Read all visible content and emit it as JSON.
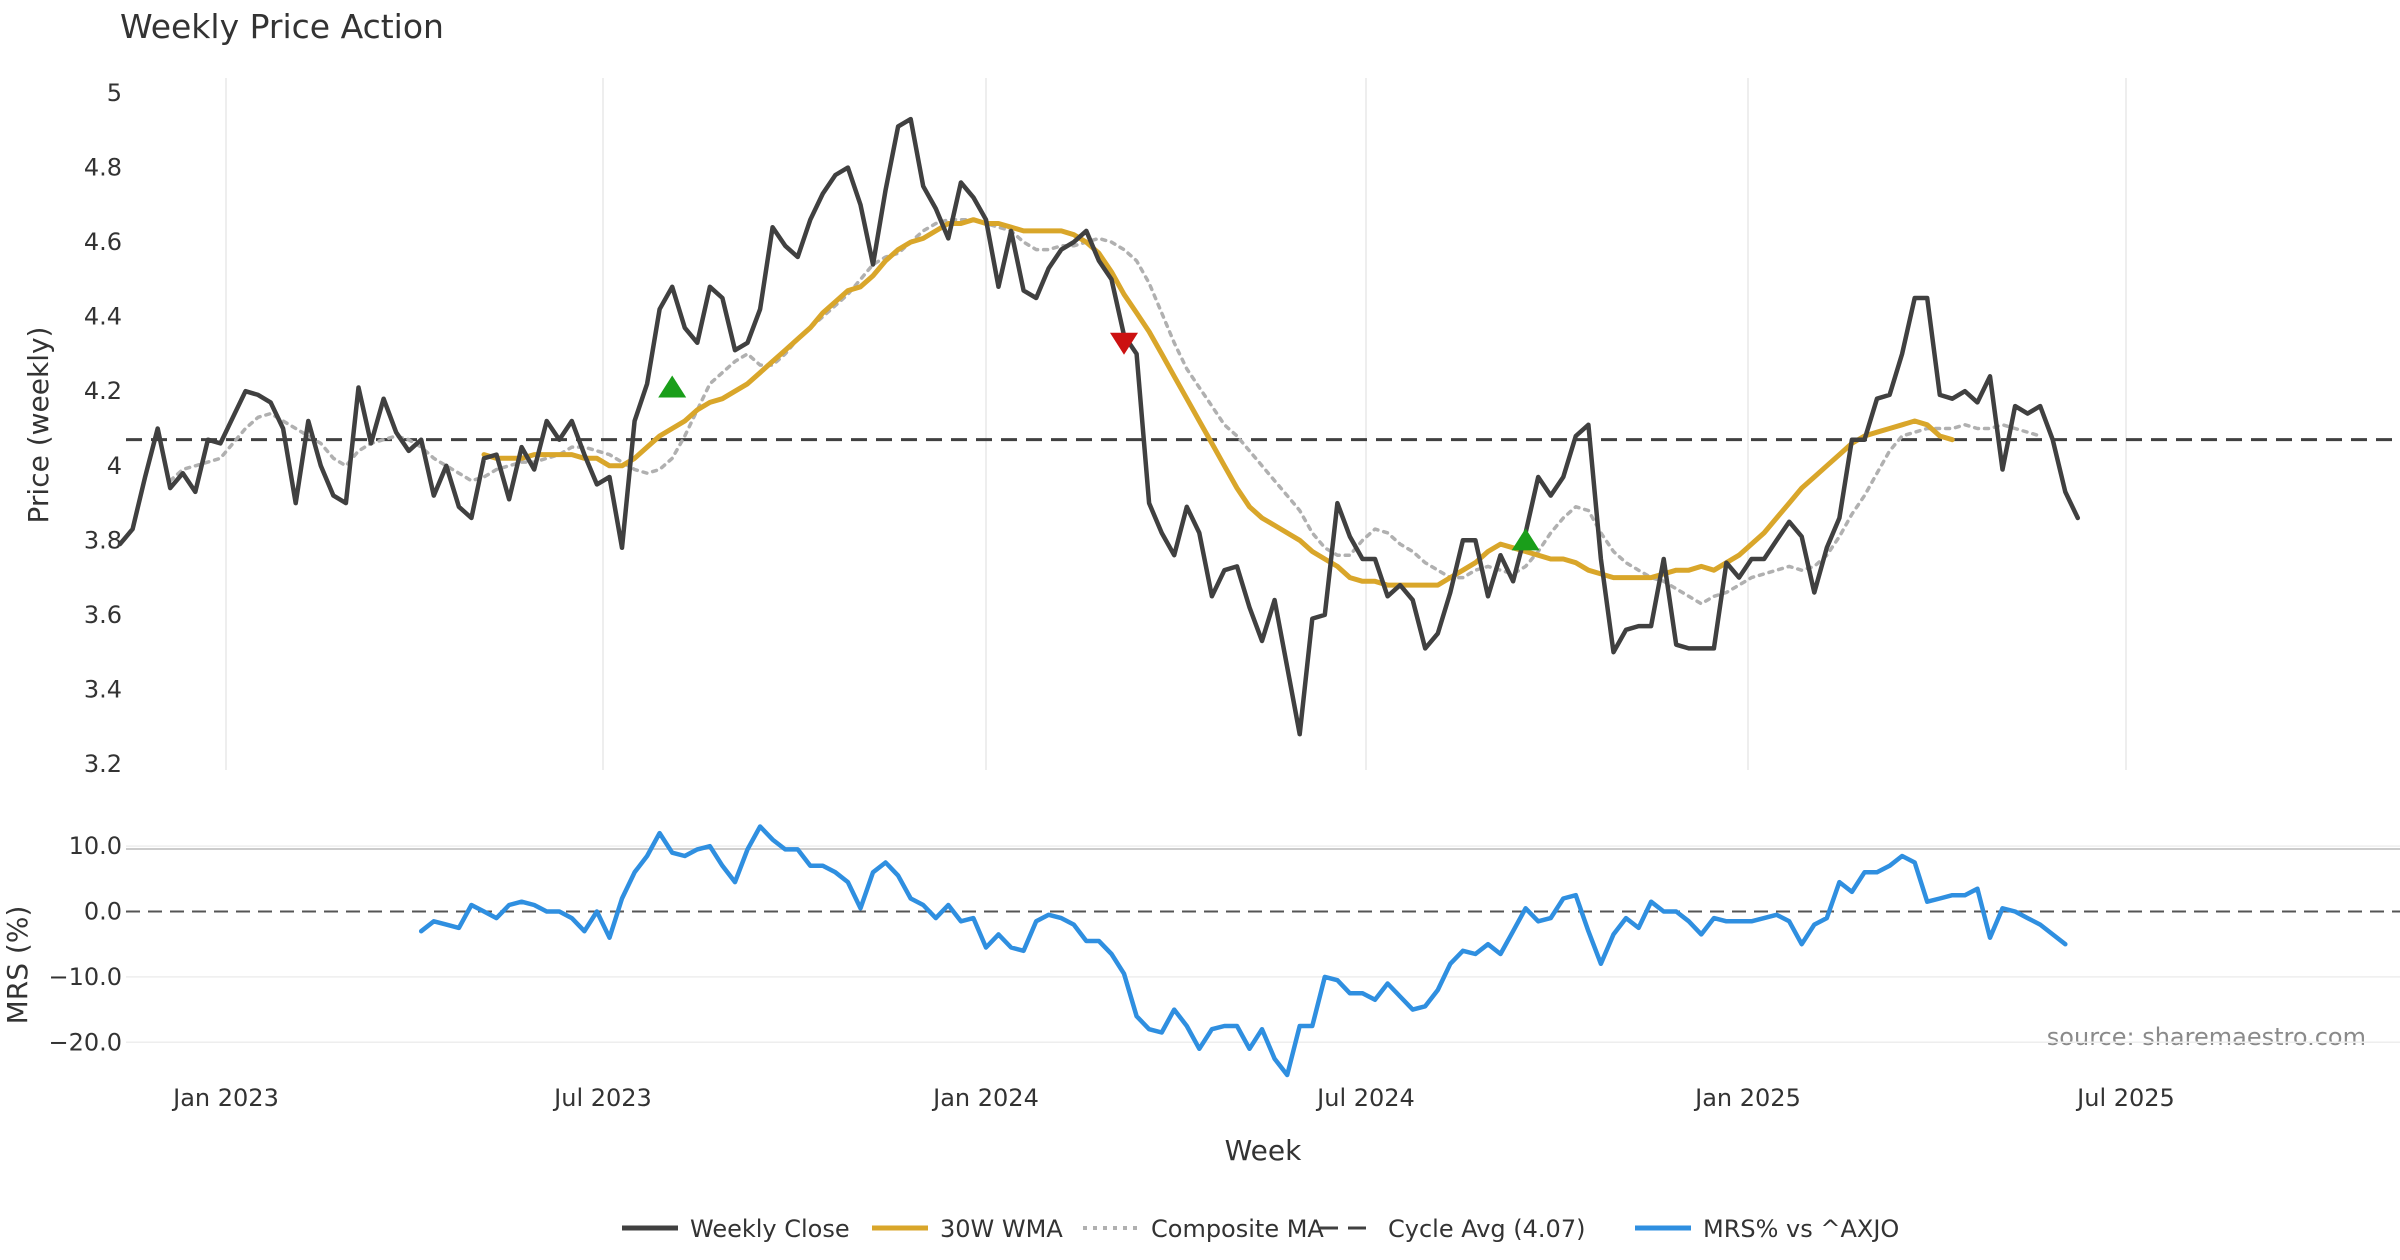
{
  "chart_data": [
    {
      "type": "line",
      "title": "Weekly Price Action",
      "ylabel": "Price (weekly)",
      "ylim": [
        3.2,
        5.0
      ],
      "y_ticks": [
        "5",
        "4.8",
        "4.6",
        "4.4",
        "4.2",
        "4",
        "3.8",
        "3.6",
        "3.4",
        "3.2"
      ],
      "x_ticks": [
        "Jan 2023",
        "Jul 2023",
        "Jan 2024",
        "Jul 2024",
        "Jan 2025",
        "Jul 2025"
      ],
      "grid": "vertical",
      "cycle_avg": 4.07,
      "series": [
        {
          "name": "Weekly Close",
          "color": "#404040",
          "style": "solid",
          "values": [
            3.79,
            3.83,
            3.97,
            4.1,
            3.94,
            3.98,
            3.93,
            4.07,
            4.06,
            4.13,
            4.2,
            4.19,
            4.17,
            4.1,
            3.9,
            4.12,
            4.0,
            3.92,
            3.9,
            4.21,
            4.06,
            4.18,
            4.09,
            4.04,
            4.07,
            3.92,
            4.0,
            3.89,
            3.86,
            4.02,
            4.03,
            3.91,
            4.05,
            3.99,
            4.12,
            4.07,
            4.12,
            4.03,
            3.95,
            3.97,
            3.78,
            4.12,
            4.22,
            4.42,
            4.48,
            4.37,
            4.33,
            4.48,
            4.45,
            4.31,
            4.33,
            4.42,
            4.64,
            4.59,
            4.56,
            4.66,
            4.73,
            4.78,
            4.8,
            4.7,
            4.54,
            4.74,
            4.91,
            4.93,
            4.75,
            4.69,
            4.61,
            4.76,
            4.72,
            4.66,
            4.48,
            4.63,
            4.47,
            4.45,
            4.53,
            4.58,
            4.6,
            4.63,
            4.55,
            4.5,
            4.35,
            4.3,
            3.9,
            3.82,
            3.76,
            3.89,
            3.82,
            3.65,
            3.72,
            3.73,
            3.62,
            3.53,
            3.64,
            3.46,
            3.28,
            3.59,
            3.6,
            3.9,
            3.81,
            3.75,
            3.75,
            3.65,
            3.68,
            3.64,
            3.51,
            3.55,
            3.66,
            3.8,
            3.8,
            3.65,
            3.76,
            3.69,
            3.82,
            3.97,
            3.92,
            3.97,
            4.08,
            4.11,
            3.75,
            3.5,
            3.56,
            3.57,
            3.57,
            3.75,
            3.52,
            3.51,
            3.51,
            3.51,
            3.74,
            3.7,
            3.75,
            3.75,
            3.8,
            3.85,
            3.81,
            3.66,
            3.78,
            3.86,
            4.07,
            4.07,
            4.18,
            4.19,
            4.3,
            4.45,
            4.45,
            4.19,
            4.18,
            4.2,
            4.17,
            4.24,
            3.99,
            4.16,
            4.14,
            4.16,
            4.07,
            3.93,
            3.86
          ]
        },
        {
          "name": "30W WMA",
          "color": "#d9a62a",
          "style": "solid",
          "start": 29,
          "values": [
            4.03,
            4.02,
            4.02,
            4.02,
            4.03,
            4.03,
            4.03,
            4.03,
            4.02,
            4.02,
            4.0,
            4.0,
            4.02,
            4.05,
            4.08,
            4.1,
            4.12,
            4.15,
            4.17,
            4.18,
            4.2,
            4.22,
            4.25,
            4.28,
            4.31,
            4.34,
            4.37,
            4.41,
            4.44,
            4.47,
            4.48,
            4.51,
            4.55,
            4.58,
            4.6,
            4.61,
            4.63,
            4.65,
            4.65,
            4.66,
            4.65,
            4.65,
            4.64,
            4.63,
            4.63,
            4.63,
            4.63,
            4.62,
            4.6,
            4.57,
            4.52,
            4.46,
            4.41,
            4.36,
            4.3,
            4.24,
            4.18,
            4.12,
            4.06,
            4.0,
            3.94,
            3.89,
            3.86,
            3.84,
            3.82,
            3.8,
            3.77,
            3.75,
            3.73,
            3.7,
            3.69,
            3.69,
            3.68,
            3.68,
            3.68,
            3.68,
            3.68,
            3.7,
            3.72,
            3.74,
            3.77,
            3.79,
            3.78,
            3.77,
            3.76,
            3.75,
            3.75,
            3.74,
            3.72,
            3.71,
            3.7,
            3.7,
            3.7,
            3.7,
            3.71,
            3.72,
            3.72,
            3.73,
            3.72,
            3.74,
            3.76,
            3.79,
            3.82,
            3.86,
            3.9,
            3.94,
            3.97,
            4.0,
            4.03,
            4.06,
            4.08,
            4.09,
            4.1,
            4.11,
            4.12,
            4.11,
            4.08,
            4.07
          ]
        },
        {
          "name": "Composite MA",
          "color": "#b0b0b0",
          "style": "dotted",
          "start": 4,
          "values": [
            3.96,
            3.99,
            4.0,
            4.01,
            4.02,
            4.06,
            4.1,
            4.13,
            4.14,
            4.12,
            4.1,
            4.08,
            4.06,
            4.02,
            4.0,
            4.04,
            4.06,
            4.07,
            4.08,
            4.07,
            4.05,
            4.02,
            4.0,
            3.98,
            3.96,
            3.97,
            3.99,
            4.0,
            4.01,
            4.01,
            4.02,
            4.03,
            4.05,
            4.05,
            4.04,
            4.03,
            4.01,
            3.99,
            3.98,
            3.99,
            4.02,
            4.08,
            4.15,
            4.22,
            4.25,
            4.28,
            4.3,
            4.27,
            4.27,
            4.3,
            4.34,
            4.37,
            4.4,
            4.43,
            4.46,
            4.5,
            4.54,
            4.56,
            4.57,
            4.6,
            4.63,
            4.65,
            4.66,
            4.66,
            4.66,
            4.65,
            4.64,
            4.63,
            4.6,
            4.58,
            4.58,
            4.59,
            4.59,
            4.6,
            4.61,
            4.6,
            4.58,
            4.55,
            4.49,
            4.41,
            4.33,
            4.26,
            4.21,
            4.16,
            4.11,
            4.08,
            4.04,
            4.0,
            3.96,
            3.92,
            3.88,
            3.82,
            3.78,
            3.76,
            3.76,
            3.8,
            3.83,
            3.82,
            3.79,
            3.77,
            3.74,
            3.72,
            3.7,
            3.7,
            3.72,
            3.73,
            3.72,
            3.71,
            3.73,
            3.77,
            3.82,
            3.86,
            3.89,
            3.88,
            3.82,
            3.77,
            3.74,
            3.72,
            3.7,
            3.69,
            3.67,
            3.65,
            3.63,
            3.65,
            3.66,
            3.68,
            3.7,
            3.71,
            3.72,
            3.73,
            3.72,
            3.73,
            3.76,
            3.81,
            3.87,
            3.92,
            3.98,
            4.04,
            4.08,
            4.09,
            4.1,
            4.1,
            4.1,
            4.11,
            4.1,
            4.1,
            4.11,
            4.1,
            4.09,
            4.08
          ]
        }
      ],
      "signals": [
        {
          "type": "buy",
          "week": 44,
          "price": 4.21,
          "color": "#1a9e1a"
        },
        {
          "type": "sell",
          "week": 80,
          "price": 4.33,
          "color": "#cc1111"
        },
        {
          "type": "buy",
          "week": 112,
          "price": 3.8,
          "color": "#1a9e1a"
        }
      ]
    },
    {
      "type": "line",
      "xlabel": "Week",
      "ylabel": "MRS (%)",
      "ylim": [
        -25.0,
        14.0
      ],
      "y_ticks": [
        "10.0",
        "0.0",
        "−10.0",
        "−20.0"
      ],
      "zero_line": 0.0,
      "series": [
        {
          "name": "MRS% vs ^AXJO",
          "color": "#2f8fe0",
          "start": 24,
          "values": [
            -3,
            -1.5,
            -2,
            -2.5,
            1,
            0,
            -1,
            1,
            1.5,
            1,
            0,
            0,
            -1,
            -3,
            0,
            -4,
            2,
            6,
            8.5,
            12,
            9,
            8.5,
            9.5,
            10,
            7,
            4.5,
            9.5,
            13,
            11,
            9.5,
            9.5,
            7,
            7,
            6,
            4.5,
            0.5,
            6,
            7.5,
            5.5,
            2,
            1,
            -1,
            1,
            -1.5,
            -1,
            -5.5,
            -3.5,
            -5.5,
            -6,
            -1.5,
            -0.5,
            -1,
            -2,
            -4.5,
            -4.5,
            -6.5,
            -9.5,
            -16,
            -18,
            -18.5,
            -15,
            -17.5,
            -21,
            -18,
            -17.5,
            -17.5,
            -21,
            -18,
            -22.5,
            -25,
            -17.5,
            -17.5,
            -10,
            -10.5,
            -12.5,
            -12.5,
            -13.5,
            -11,
            -13,
            -15,
            -14.5,
            -12,
            -8,
            -6,
            -6.5,
            -5,
            -6.5,
            -3,
            0.5,
            -1.5,
            -1,
            2,
            2.5,
            -3,
            -8,
            -3.5,
            -1,
            -2.5,
            1.5,
            0,
            0,
            -1.5,
            -3.5,
            -1,
            -1.5,
            -1.5,
            -1.5,
            -1,
            -0.5,
            -1.5,
            -5,
            -2,
            -1,
            4.5,
            3,
            6,
            6,
            7,
            8.5,
            7.5,
            1.5,
            2,
            2.5,
            2.5,
            3.5,
            -4,
            0.5,
            0,
            -1,
            -2,
            -3.5,
            -5
          ]
        }
      ],
      "source": "source: sharemaestro.com"
    }
  ],
  "legend": [
    {
      "label": "Weekly Close",
      "color": "#404040",
      "style": "solid"
    },
    {
      "label": "30W WMA",
      "color": "#d9a62a",
      "style": "solid"
    },
    {
      "label": "Composite MA",
      "color": "#b0b0b0",
      "style": "dotted"
    },
    {
      "label": "Cycle Avg (4.07)",
      "color": "#404040",
      "style": "dashed"
    },
    {
      "label": "MRS% vs ^AXJO",
      "color": "#2f8fe0",
      "style": "solid"
    }
  ]
}
